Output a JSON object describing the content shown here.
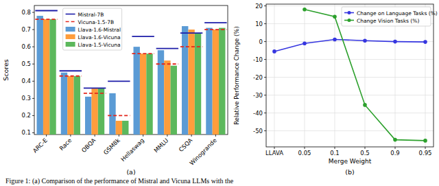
{
  "chart_data": [
    {
      "type": "bar",
      "y_label": "Scores",
      "panel_label": "(a)",
      "categories": [
        "ARC-E",
        "Race",
        "OBQA",
        "GSM8k",
        "Hellaswag",
        "MMLU",
        "CSQA",
        "Winogrande"
      ],
      "series": [
        {
          "name": "Mistral-7B",
          "type": "line",
          "line_style": "solid",
          "color": "#1c1ca8",
          "values": [
            0.81,
            0.46,
            0.36,
            0.4,
            0.66,
            0.59,
            0.68,
            0.74
          ]
        },
        {
          "name": "Vicuna-1.5-7B",
          "type": "line",
          "line_style": "dashed",
          "color": "#e3261c",
          "values": [
            0.76,
            0.43,
            0.33,
            0.2,
            0.56,
            0.5,
            0.6,
            0.7
          ]
        },
        {
          "name": "Llava-1.6-Mistral",
          "type": "bar",
          "color": "#5b9bd5",
          "values": [
            0.78,
            0.45,
            0.31,
            0.33,
            0.6,
            0.58,
            0.72,
            0.71
          ]
        },
        {
          "name": "Llava-1.6-Vicuna",
          "type": "bar",
          "color": "#ff9d3c",
          "values": [
            0.76,
            0.43,
            0.36,
            0.17,
            0.56,
            0.52,
            0.7,
            0.7
          ]
        },
        {
          "name": "Llava-1.5-Vicuna",
          "type": "bar",
          "color": "#5cb85c",
          "values": [
            0.76,
            0.43,
            0.36,
            0.17,
            0.56,
            0.49,
            0.68,
            0.71
          ]
        }
      ],
      "ylim": [
        0.09,
        0.84
      ],
      "yticks": [
        0.1,
        0.2,
        0.3,
        0.4,
        0.5,
        0.6,
        0.7,
        0.8
      ],
      "grid": false,
      "legend": "upper center"
    },
    {
      "type": "line",
      "y_label": "Relative Performance Change (%)",
      "x_label": "Merge Weight",
      "panel_label": "(b)",
      "categories": [
        "LLAVA",
        "0.05",
        "0.1",
        "0.5",
        "0.9",
        "0.95"
      ],
      "series": [
        {
          "name": "Change on Language Tasks (%)",
          "color": "#3636e0",
          "marker": "circle",
          "line_style": "solid",
          "values": [
            -5.5,
            -1,
            1.2,
            0.5,
            0,
            -0.2
          ]
        },
        {
          "name": "Change Vision Tasks (%)",
          "color": "#2ca02c",
          "marker": "circle",
          "line_style": "solid",
          "values": [
            null,
            18,
            14,
            -35.5,
            -55,
            -55.5
          ]
        }
      ],
      "ylim": [
        -59,
        21
      ],
      "yticks": [
        -50,
        -40,
        -30,
        -20,
        -10,
        0,
        10,
        20
      ],
      "grid": true,
      "legend": "upper right"
    }
  ],
  "caption": "Figure 1:  (a) Comparison of the performance of Mistral and Vicuna LLMs with the"
}
